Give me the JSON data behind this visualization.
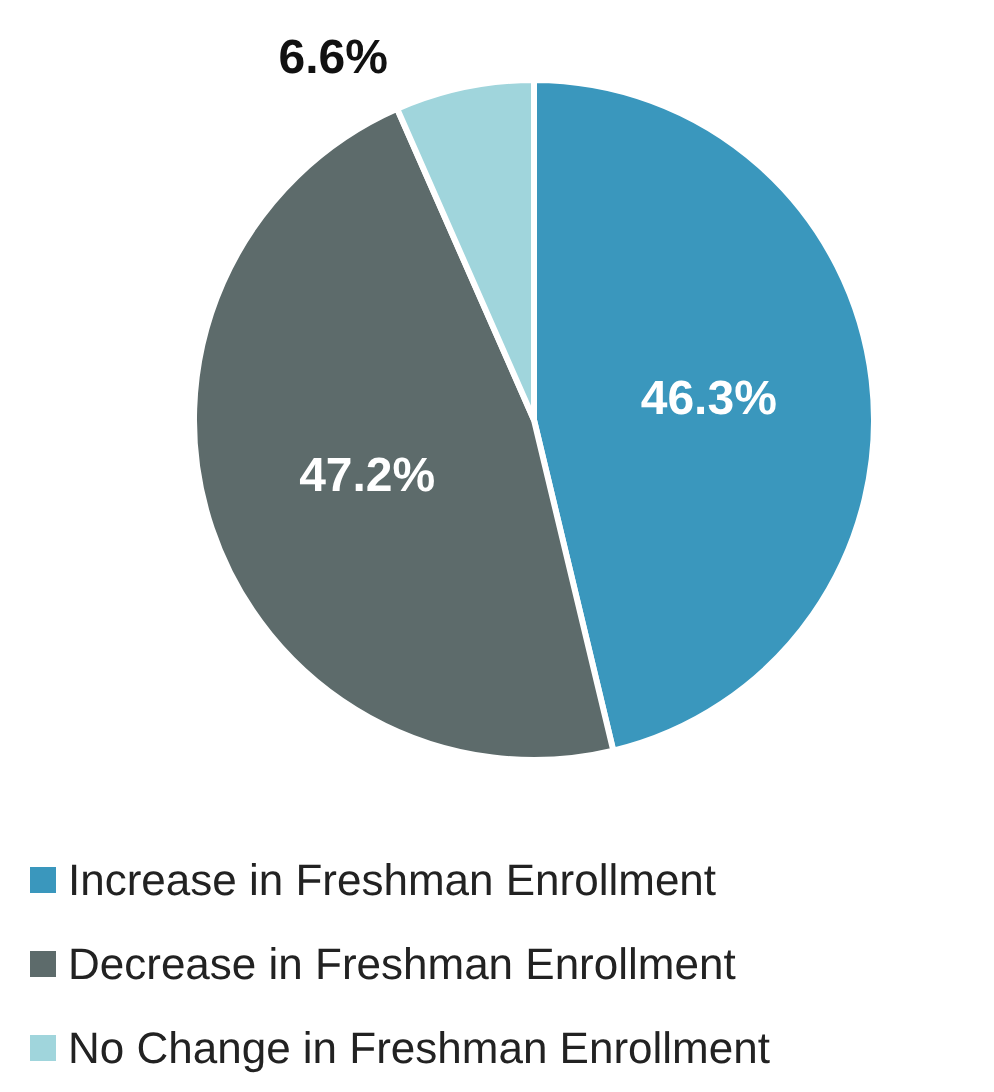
{
  "chart_data": {
    "type": "pie",
    "categories": [
      "Increase in Freshman Enrollment",
      "Decrease in Freshman Enrollment",
      "No Change in Freshman Enrollment"
    ],
    "values": [
      46.3,
      47.2,
      6.6
    ],
    "colors": [
      "#3a97bd",
      "#5d6b6b",
      "#a0d5dc"
    ],
    "value_labels": [
      "46.3%",
      "47.2%",
      "6.6%"
    ],
    "legend": "bottom"
  }
}
